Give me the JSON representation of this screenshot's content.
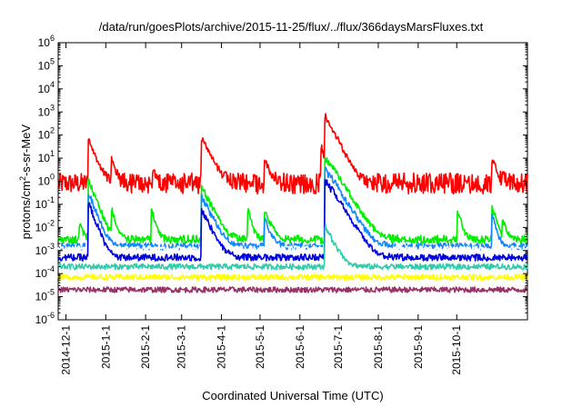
{
  "chart_data": {
    "type": "line",
    "title": "/data/run/goesPlots/archive/2015-11-25/flux/../flux/366daysMarsFluxes.txt",
    "xlabel": "Coordinated Universal Time (UTC)",
    "ylabel_pre": "protons/cm",
    "ylabel_sup": "2",
    "ylabel_post": "-s-sr-MeV",
    "yscale": "log",
    "ylim": [
      1e-06,
      1000000.0
    ],
    "xlim": [
      "2014-11-25",
      "2015-11-25"
    ],
    "y_ticks": [
      {
        "base": "10",
        "exp": "-6"
      },
      {
        "base": "10",
        "exp": "-5"
      },
      {
        "base": "10",
        "exp": "-4"
      },
      {
        "base": "10",
        "exp": "-3"
      },
      {
        "base": "10",
        "exp": "-2"
      },
      {
        "base": "10",
        "exp": "-1"
      },
      {
        "base": "10",
        "exp": "0"
      },
      {
        "base": "10",
        "exp": "1"
      },
      {
        "base": "10",
        "exp": "2"
      },
      {
        "base": "10",
        "exp": "3"
      },
      {
        "base": "10",
        "exp": "4"
      },
      {
        "base": "10",
        "exp": "5"
      },
      {
        "base": "10",
        "exp": "6"
      }
    ],
    "x_ticks": [
      "2014-12-1",
      "2015-1-1",
      "2015-2-1",
      "2015-3-1",
      "2015-4-1",
      "2015-5-1",
      "2015-6-1",
      "2015-7-1",
      "2015-8-1",
      "2015-9-1",
      "2015-10-1"
    ],
    "grid": false,
    "legend": "none",
    "series": [
      {
        "color": "#ff0000",
        "baseline": 0.8,
        "noise": 0.45,
        "events": [
          [
            "2014-12-19",
            60,
            3
          ],
          [
            "2015-1-6",
            8,
            2
          ],
          [
            "2015-2-7",
            3,
            2
          ],
          [
            "2015-3-17",
            70,
            4
          ],
          [
            "2015-5-5",
            8,
            3
          ],
          [
            "2015-6-18",
            30,
            2
          ],
          [
            "2015-6-21",
            600,
            4
          ],
          [
            "2015-6-25",
            40,
            4
          ],
          [
            "2015-10-29",
            10,
            2
          ],
          [
            "2015-11-6",
            2,
            2
          ]
        ]
      },
      {
        "color": "#00ee00",
        "baseline": 0.003,
        "noise": 0.18,
        "events": [
          [
            "2014-12-12",
            0.015,
            2
          ],
          [
            "2014-12-19",
            1,
            3
          ],
          [
            "2015-1-6",
            0.05,
            2
          ],
          [
            "2015-2-6",
            0.05,
            2
          ],
          [
            "2015-3-17",
            0.5,
            4
          ],
          [
            "2015-4-22",
            0.05,
            2
          ],
          [
            "2015-5-5",
            0.05,
            3
          ],
          [
            "2015-6-21",
            10,
            5
          ],
          [
            "2015-6-26",
            1,
            4
          ],
          [
            "2015-10-2",
            0.05,
            2
          ],
          [
            "2015-10-29",
            0.08,
            2
          ],
          [
            "2015-11-6",
            0.02,
            2
          ]
        ]
      },
      {
        "color": "#1188ff",
        "baseline": 0.0015,
        "noise": 0.15,
        "events": [
          [
            "2014-12-19",
            0.3,
            3
          ],
          [
            "2015-3-17",
            0.2,
            4
          ],
          [
            "2015-5-5",
            0.02,
            3
          ],
          [
            "2015-6-21",
            3,
            5
          ],
          [
            "2015-6-26",
            0.3,
            4
          ],
          [
            "2015-10-29",
            0.03,
            2
          ]
        ]
      },
      {
        "color": "#ffffff",
        "baseline": 0.0012,
        "noise": 0.12,
        "events": [
          [
            "2014-12-19",
            0.05,
            3
          ],
          [
            "2015-3-17",
            0.03,
            4
          ],
          [
            "2015-6-21",
            0.5,
            5
          ]
        ]
      },
      {
        "color": "#0000dd",
        "baseline": 0.0005,
        "noise": 0.15,
        "events": [
          [
            "2014-12-19",
            0.1,
            3
          ],
          [
            "2015-3-17",
            0.05,
            4
          ],
          [
            "2015-6-21",
            1,
            5
          ],
          [
            "2015-6-26",
            0.1,
            4
          ]
        ]
      },
      {
        "color": "#33ccaa",
        "baseline": 0.0002,
        "noise": 0.12,
        "events": [
          [
            "2015-6-21",
            0.01,
            4
          ]
        ]
      },
      {
        "color": "#ffff00",
        "baseline": 7e-05,
        "noise": 0.12,
        "events": []
      },
      {
        "color": "#993366",
        "baseline": 2e-05,
        "noise": 0.12,
        "events": []
      }
    ]
  }
}
